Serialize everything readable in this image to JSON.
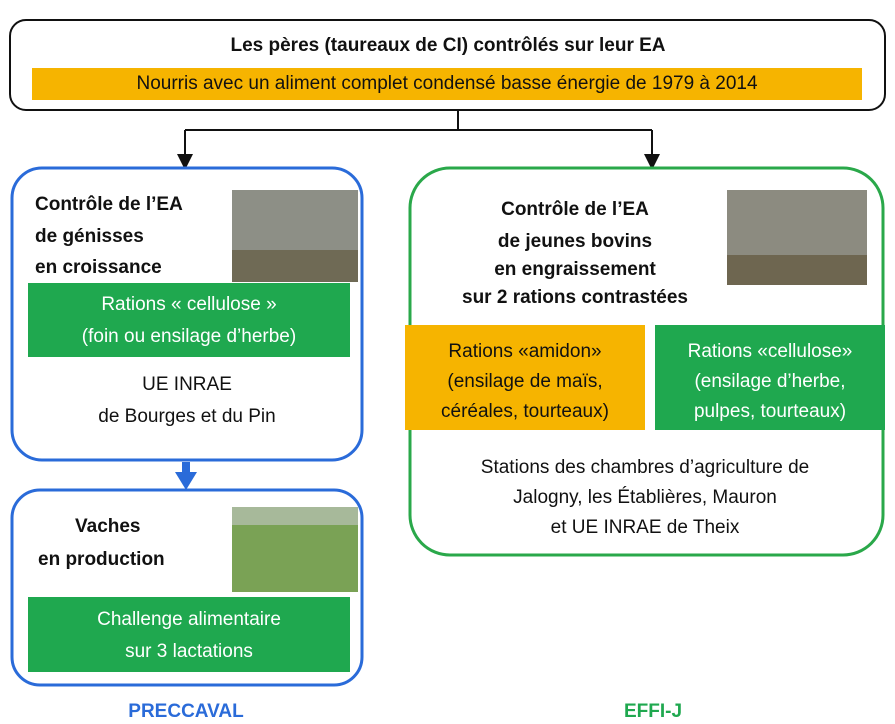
{
  "header": {
    "title": "Les pères (taureaux de CI) contrôlés sur leur EA",
    "subtitle": "Nourris avec un aliment complet condensé basse énergie de 1979 à 2014"
  },
  "heifers": {
    "title_lines": [
      "Contrôle de l’EA",
      "de génisses",
      "en croissance"
    ],
    "ration_lines": [
      "Rations « cellulose »",
      "(foin ou ensilage d’herbe)"
    ],
    "site_lines": [
      "UE INRAE",
      "de Bourges et du Pin"
    ]
  },
  "cows": {
    "title_lines": [
      "Vaches",
      "en production"
    ],
    "challenge_lines": [
      "Challenge alimentaire",
      "sur 3 lactations"
    ]
  },
  "bulls": {
    "title_lines": [
      "Contrôle de l’EA",
      "de jeunes bovins",
      "en engraissement",
      "sur 2 rations contrastées"
    ],
    "starch_lines": [
      "Rations «amidon»",
      "(ensilage de maïs,",
      "céréales, tourteaux)"
    ],
    "cellulose_lines": [
      "Rations «cellulose»",
      "(ensilage d’herbe,",
      "pulpes, tourteaux)"
    ],
    "site_lines": [
      "Stations des chambres d’agriculture de",
      "Jalogny, les Établières, Mauron",
      "et UE INRAE de Theix"
    ]
  },
  "footer": {
    "left": "PRECCAVAL",
    "right": "EFFI-J"
  }
}
